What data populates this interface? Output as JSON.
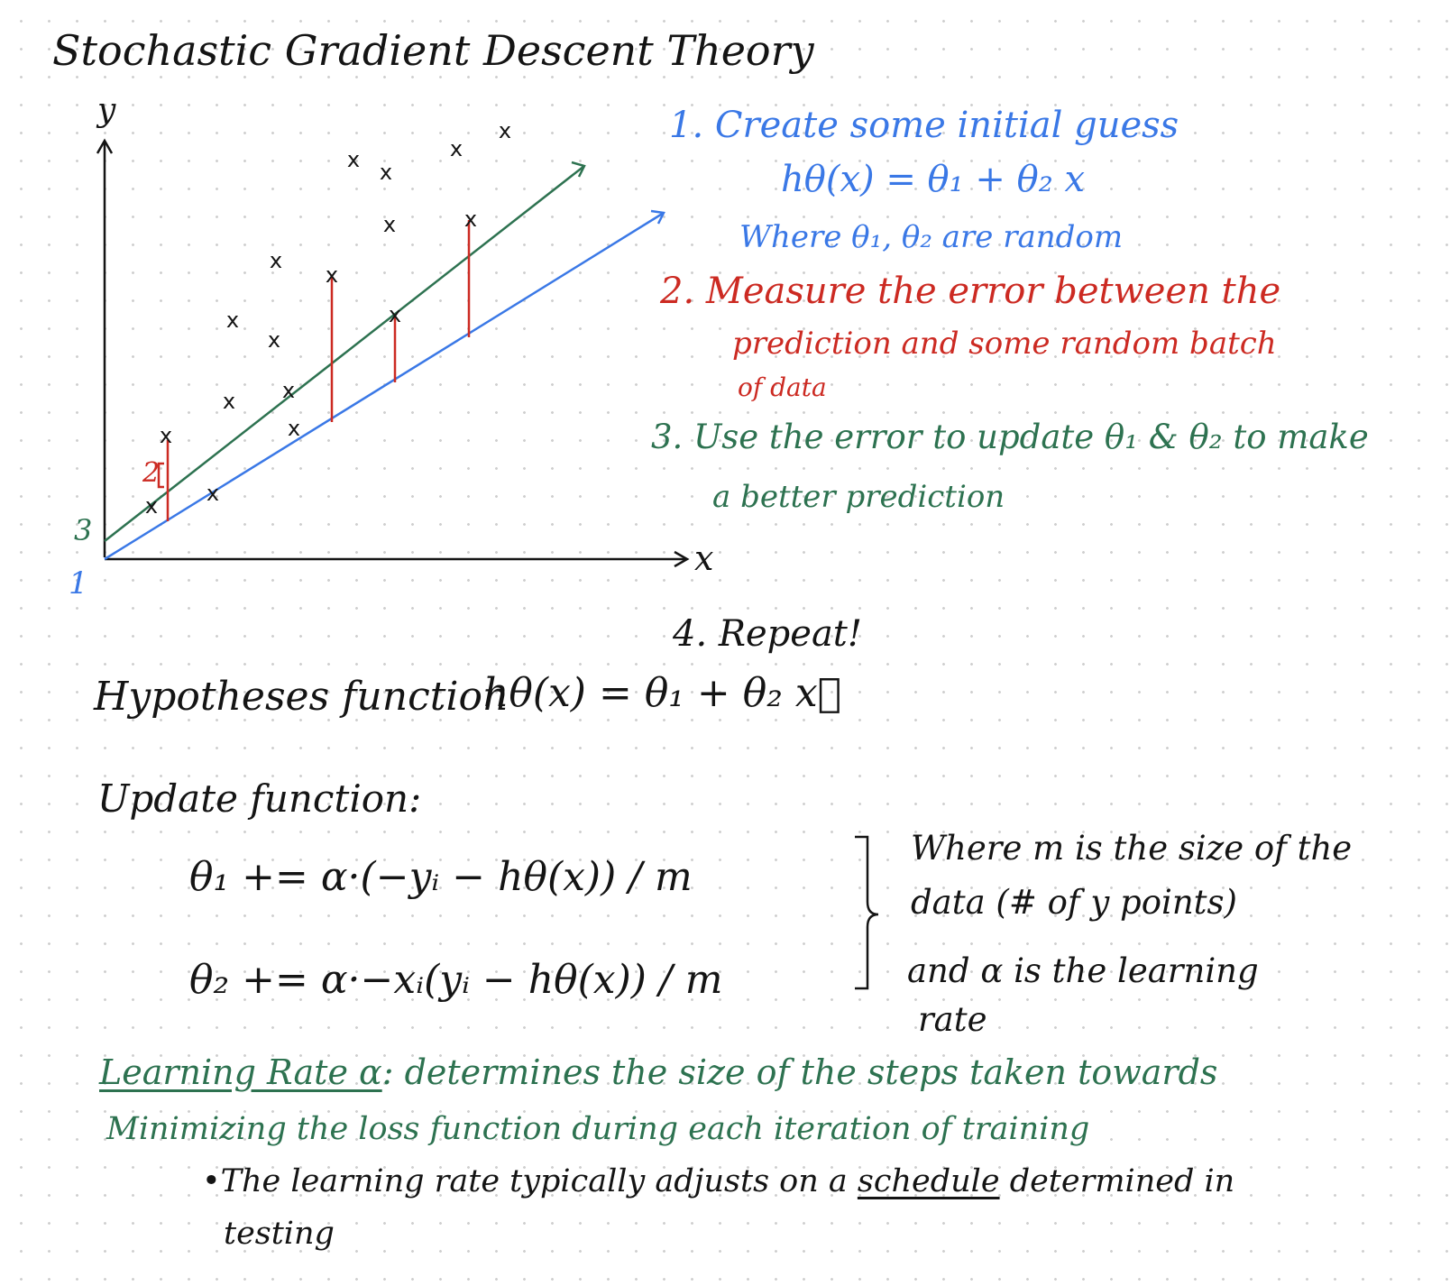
{
  "title": "Stochastic Gradient Descent Theory",
  "graph": {
    "y_label": "y",
    "x_label": "x",
    "green_intercept_label": "3",
    "blue_intercept_label": "1",
    "residual_label": "2",
    "point_marker": "x",
    "colors": {
      "axes": "#141414",
      "green": "#2d7250",
      "blue": "#3a78e6",
      "red": "#cc2a22"
    }
  },
  "steps": {
    "step1_line1": "1. Create some initial guess",
    "step1_formula": "hθ(x) = θ₁ + θ₂ x",
    "step1_line3": "Where θ₁, θ₂ are random",
    "step2_line1": "2. Measure the error between the",
    "step2_line2": "prediction and some random batch",
    "step2_line3": "of data",
    "step3_line1": "3. Use the error to update θ₁ & θ₂ to make",
    "step3_line2": "a better prediction",
    "step4": "4. Repeat!"
  },
  "hypothesis": {
    "label": "Hypotheses function",
    "formula": "hθ(x) = θ₁ + θ₂ x⃗"
  },
  "update": {
    "label": "Update function:",
    "eq1": "θ₁ += α·(−yᵢ − hθ(x)) / m",
    "eq2": "θ₂ += α·−xᵢ(yᵢ − hθ(x)) / m",
    "note_line1": "Where m is the size of the",
    "note_line2": "data (# of y points)",
    "note_line3": "and α is the learning",
    "note_line4": "rate"
  },
  "learning_rate": {
    "term": "Learning Rate α",
    "def_line1": ": determines the size of the steps taken towards",
    "def_line2": "Minimizing the loss function during each iteration of training",
    "bullet_pre": "•The learning rate typically adjusts on a ",
    "bullet_emph": "schedule",
    "bullet_post": " determined in",
    "bullet_line2": "testing"
  }
}
